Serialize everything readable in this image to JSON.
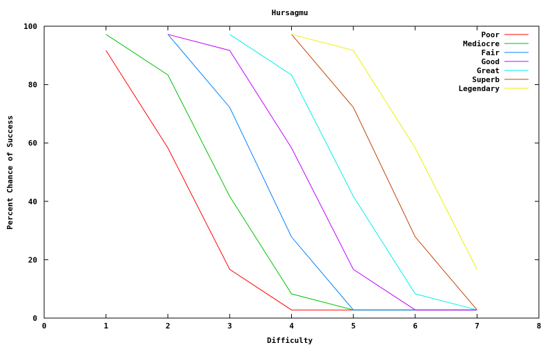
{
  "chart_data": {
    "type": "line",
    "title": "Hursagmu",
    "xlabel": "Difficulty",
    "ylabel": "Percent Chance of Success",
    "xlim": [
      0,
      8
    ],
    "ylim": [
      0,
      100
    ],
    "x_ticks": [
      0,
      1,
      2,
      3,
      4,
      5,
      6,
      7,
      8
    ],
    "y_ticks": [
      0,
      20,
      40,
      60,
      80,
      100
    ],
    "grid": false,
    "legend_position": "top-right",
    "series": [
      {
        "name": "Poor",
        "color": "#ff0000",
        "points": [
          [
            1,
            91.7
          ],
          [
            2,
            58.3
          ],
          [
            3,
            16.7
          ],
          [
            4,
            2.8
          ],
          [
            5,
            2.8
          ],
          [
            6,
            2.8
          ],
          [
            7,
            2.8
          ]
        ]
      },
      {
        "name": "Mediocre",
        "color": "#00c000",
        "points": [
          [
            1,
            97.2
          ],
          [
            2,
            83.3
          ],
          [
            3,
            41.7
          ],
          [
            4,
            8.3
          ],
          [
            5,
            2.8
          ],
          [
            6,
            2.8
          ],
          [
            7,
            2.8
          ]
        ]
      },
      {
        "name": "Fair",
        "color": "#0080ff",
        "points": [
          [
            2,
            97.2
          ],
          [
            3,
            72.2
          ],
          [
            4,
            27.8
          ],
          [
            5,
            2.8
          ],
          [
            6,
            2.8
          ],
          [
            7,
            2.8
          ]
        ]
      },
      {
        "name": "Good",
        "color": "#c000ff",
        "points": [
          [
            2,
            97.2
          ],
          [
            3,
            91.7
          ],
          [
            4,
            58.3
          ],
          [
            5,
            16.7
          ],
          [
            6,
            2.8
          ],
          [
            7,
            2.8
          ]
        ]
      },
      {
        "name": "Great",
        "color": "#00eeee",
        "points": [
          [
            3,
            97.2
          ],
          [
            4,
            83.3
          ],
          [
            5,
            41.7
          ],
          [
            6,
            8.3
          ],
          [
            7,
            2.8
          ]
        ]
      },
      {
        "name": "Superb",
        "color": "#c04000",
        "points": [
          [
            4,
            97.2
          ],
          [
            5,
            72.2
          ],
          [
            6,
            27.8
          ],
          [
            7,
            2.8
          ]
        ]
      },
      {
        "name": "Legendary",
        "color": "#eeee00",
        "points": [
          [
            4,
            97.2
          ],
          [
            5,
            91.7
          ],
          [
            6,
            58.3
          ],
          [
            7,
            16.7
          ]
        ]
      }
    ]
  }
}
